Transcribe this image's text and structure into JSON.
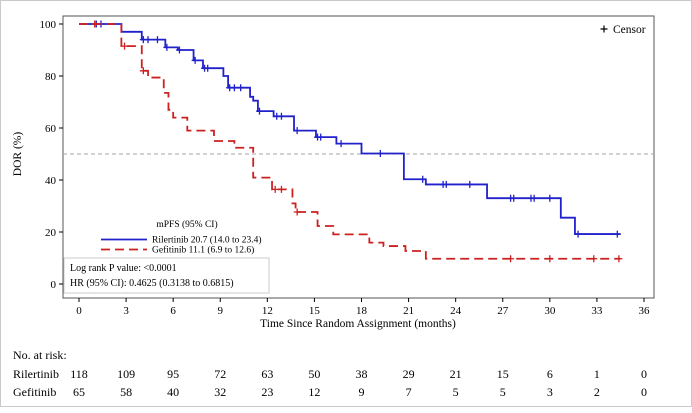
{
  "chart_data": {
    "type": "line",
    "subtype": "kaplan-meier-step",
    "title": "",
    "xlabel": "Time Since Random Assignment (months)",
    "ylabel": "DOR (%)",
    "xlim": [
      0,
      36
    ],
    "ylim": [
      0,
      100
    ],
    "xticks": [
      0,
      3,
      6,
      9,
      12,
      15,
      18,
      21,
      24,
      27,
      30,
      33,
      36
    ],
    "yticks": [
      0,
      20,
      40,
      60,
      80,
      100
    ],
    "grid": false,
    "reference_line": {
      "y": 50,
      "style": "dashed",
      "color": "#a6a6a6"
    },
    "censor_legend": {
      "symbol": "+",
      "label": "Censor"
    },
    "legend": {
      "title": "mPFS (95% CI)",
      "entries": [
        {
          "label": "Rilertinib 20.7 (14.0 to 23.4)",
          "color": "#2121cc",
          "line_style": "solid"
        },
        {
          "label": "Gefitinib 11.1 (6.9 to 12.6)",
          "color": "#cc2121",
          "line_style": "dashed"
        }
      ]
    },
    "stats": {
      "line1": "Log rank P value: <0.0001",
      "line2": "HR (95% CI): 0.4625 (0.3138 to 0.6815)"
    },
    "series": [
      {
        "name": "Rilertinib",
        "color": "#2121cc",
        "line_style": "solid",
        "end_time": 34.5,
        "steps": [
          [
            0,
            100
          ],
          [
            2.7,
            97
          ],
          [
            4.0,
            94
          ],
          [
            5.5,
            91
          ],
          [
            6.3,
            90
          ],
          [
            7.3,
            86
          ],
          [
            7.9,
            83
          ],
          [
            9.2,
            80
          ],
          [
            9.5,
            75.5
          ],
          [
            10.9,
            72
          ],
          [
            11.1,
            70.5
          ],
          [
            11.4,
            66.5
          ],
          [
            12.4,
            64.5
          ],
          [
            13.7,
            59
          ],
          [
            15.1,
            56.5
          ],
          [
            16.4,
            54
          ],
          [
            18.0,
            50.2
          ],
          [
            20.7,
            40.3
          ],
          [
            22.1,
            38.3
          ],
          [
            26.0,
            33
          ],
          [
            30.7,
            25.5
          ],
          [
            31.6,
            19.2
          ]
        ],
        "censors": [
          [
            1.1,
            100
          ],
          [
            1.4,
            100
          ],
          [
            4.1,
            94
          ],
          [
            4.4,
            94
          ],
          [
            5.0,
            94
          ],
          [
            5.6,
            91
          ],
          [
            6.4,
            90
          ],
          [
            7.4,
            86
          ],
          [
            8.0,
            83
          ],
          [
            8.2,
            83
          ],
          [
            9.6,
            75.5
          ],
          [
            9.9,
            75.5
          ],
          [
            10.3,
            75.5
          ],
          [
            11.5,
            66.5
          ],
          [
            12.6,
            64.5
          ],
          [
            12.9,
            64.5
          ],
          [
            13.9,
            59
          ],
          [
            15.2,
            56.5
          ],
          [
            15.4,
            56.5
          ],
          [
            16.7,
            54
          ],
          [
            19.2,
            50.2
          ],
          [
            21.9,
            40.3
          ],
          [
            23.2,
            38.3
          ],
          [
            23.4,
            38.3
          ],
          [
            24.9,
            38.3
          ],
          [
            27.5,
            33
          ],
          [
            27.7,
            33
          ],
          [
            28.8,
            33
          ],
          [
            29.0,
            33
          ],
          [
            30.0,
            33
          ],
          [
            31.8,
            19.2
          ],
          [
            34.3,
            19.2
          ]
        ]
      },
      {
        "name": "Gefitinib",
        "color": "#cc2121",
        "line_style": "dashed",
        "end_time": 34.5,
        "steps": [
          [
            0,
            100
          ],
          [
            2.7,
            91.5
          ],
          [
            4.0,
            82
          ],
          [
            4.4,
            79.4
          ],
          [
            5.4,
            73.5
          ],
          [
            5.7,
            67
          ],
          [
            6.0,
            64
          ],
          [
            6.9,
            59
          ],
          [
            8.6,
            55
          ],
          [
            9.9,
            52.4
          ],
          [
            11.1,
            40.9
          ],
          [
            12.3,
            36.4
          ],
          [
            13.6,
            31
          ],
          [
            13.8,
            27.7
          ],
          [
            15.2,
            22.3
          ],
          [
            16.2,
            19.1
          ],
          [
            18.5,
            15.9
          ],
          [
            19.4,
            14.6
          ],
          [
            20.8,
            12.7
          ],
          [
            22.1,
            9.7
          ]
        ],
        "censors": [
          [
            1.0,
            100
          ],
          [
            2.9,
            91.5
          ],
          [
            4.1,
            82
          ],
          [
            12.5,
            36.4
          ],
          [
            12.9,
            36.4
          ],
          [
            13.9,
            27.7
          ],
          [
            27.5,
            9.7
          ],
          [
            30.0,
            9.7
          ],
          [
            32.8,
            9.7
          ],
          [
            34.4,
            9.7
          ]
        ]
      }
    ],
    "risk_table": {
      "header": "No. at risk:",
      "times": [
        0,
        3,
        6,
        9,
        12,
        15,
        18,
        21,
        24,
        27,
        30,
        33,
        36
      ],
      "rows": [
        {
          "label": "Rilertinib",
          "values": [
            118,
            109,
            95,
            72,
            63,
            50,
            38,
            29,
            21,
            15,
            6,
            1,
            0
          ]
        },
        {
          "label": "Gefitinib",
          "values": [
            65,
            58,
            40,
            32,
            23,
            12,
            9,
            7,
            5,
            5,
            3,
            2,
            0
          ]
        }
      ]
    }
  }
}
